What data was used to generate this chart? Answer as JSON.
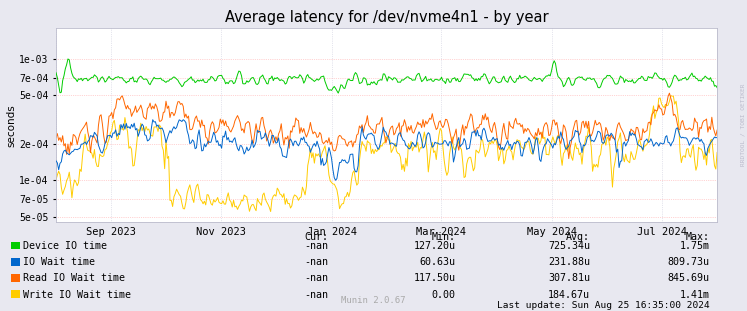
{
  "title": "Average latency for /dev/nvme4n1 - by year",
  "ylabel": "seconds",
  "right_label": "RRDTOOL / TOBI OETIKER",
  "ylim_min": 4.5e-05,
  "ylim_max": 0.0018,
  "bg_color": "#e8e8f0",
  "plot_bg_color": "#ffffff",
  "grid_color": "#ccccdd",
  "hline_color": "#ffaaaa",
  "title_fontsize": 10.5,
  "legend_entries": [
    {
      "label": "Device IO time",
      "color": "#00cc00"
    },
    {
      "label": "IO Wait time",
      "color": "#0066cc"
    },
    {
      "label": "Read IO Wait time",
      "color": "#ff6600"
    },
    {
      "label": "Write IO Wait time",
      "color": "#ffcc00"
    }
  ],
  "legend_cols": [
    "Cur:",
    "Min:",
    "Avg:",
    "Max:"
  ],
  "legend_data": [
    [
      "-nan",
      "127.20u",
      "725.34u",
      "1.75m"
    ],
    [
      "-nan",
      "60.63u",
      "231.88u",
      "809.73u"
    ],
    [
      "-nan",
      "117.50u",
      "307.81u",
      "845.69u"
    ],
    [
      "-nan",
      "0.00",
      "184.67u",
      "1.41m"
    ]
  ],
  "last_update": "Last update: Sun Aug 25 16:35:00 2024",
  "munin_version": "Munin 2.0.67",
  "x_tick_labels": [
    "Sep 2023",
    "Nov 2023",
    "Jan 2024",
    "Mar 2024",
    "May 2024",
    "Jul 2024"
  ],
  "x_tick_positions": [
    0.083,
    0.25,
    0.417,
    0.583,
    0.75,
    0.917
  ],
  "ytick_labels": [
    "5e-05",
    "7e-05",
    "1e-04",
    "2e-04",
    "5e-04",
    "7e-04",
    "1e-03"
  ],
  "ytick_values": [
    5e-05,
    7e-05,
    0.0001,
    0.0002,
    0.0005,
    0.0007,
    0.001
  ],
  "seed": 42
}
